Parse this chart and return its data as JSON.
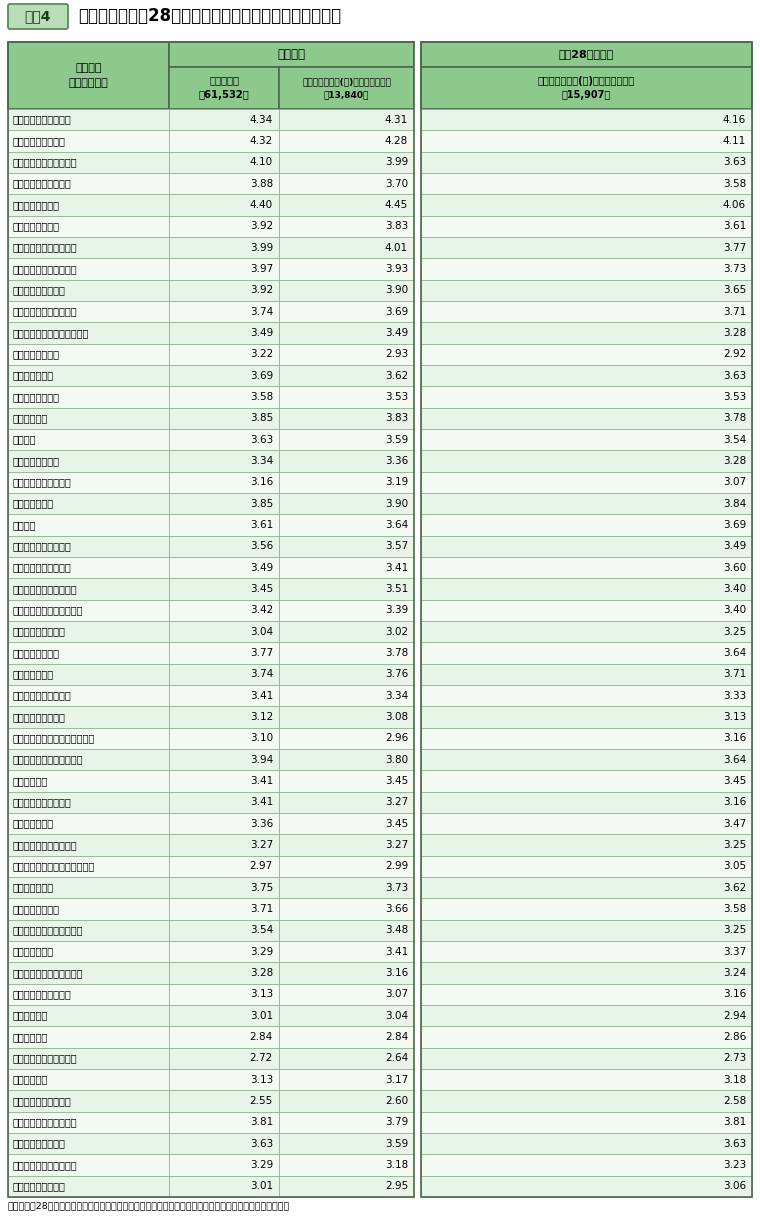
{
  "title": "今回調査と平成28年度調査との共通の質問項目の平均値",
  "tag": "資料4",
  "col1_header_line1": "質問項目",
  "col1_header_line2": "（回答者数）",
  "col2_header": "今回調査",
  "col3_header": "平成28年度調査",
  "col2a_line1": "【属性計】",
  "col2a_line2": "（61,532）",
  "col2b_line1": "【行政職俸給表(一)かつ本府省庁】",
  "col2b_line2": "（13,840）",
  "col3a_line1": "【行政職俸給表(一)かつ本府省庁】",
  "col3a_line2": "（15,907）",
  "footer": "（注）平成28年度調査の対象は、行政職俸給表（一）が適用される職員のうち、本府省庁に勤務する職員。",
  "header_bg": "#8dc88d",
  "tag_bg": "#b8ddb8",
  "tag_border": "#5a8a5a",
  "row_bg_even": "#e8f4e8",
  "row_bg_odd": "#f2faf2",
  "border_dark": "#4a6a4a",
  "border_light": "#8aaa8a",
  "rows": [
    [
      "法令やルールの理解度",
      4.34,
      4.31,
      4.16
    ],
    [
      "法令や倫理の遵守度",
      4.32,
      4.28,
      4.11
    ],
    [
      "不祥事の再発防止の取組",
      4.1,
      3.99,
      3.63
    ],
    [
      "苦情相談窓口の周知度",
      3.88,
      3.7,
      3.58
    ],
    [
      "セクハラの防止度",
      4.4,
      4.45,
      4.06
    ],
    [
      "パワハラの防止度",
      3.92,
      3.83,
      3.61
    ],
    [
      "所管行政の責任ある推進",
      3.99,
      4.01,
      3.77
    ],
    [
      "府省庁の国民への奉仕度",
      3.97,
      3.93,
      3.73
    ],
    [
      "府省庁の社会貢献度",
      3.92,
      3.9,
      3.65
    ],
    [
      "仕事を通じた貢献の実感",
      3.74,
      3.69,
      3.71
    ],
    [
      "国民のニーズの行政への反映",
      3.49,
      3.49,
      3.28
    ],
    [
      "奉仕の実感の機会",
      3.22,
      2.93,
      2.92
    ],
    [
      "業務量の許容度",
      3.69,
      3.62,
      3.63
    ],
    [
      "ストレスの許容度",
      3.58,
      3.53,
      3.53
    ],
    [
      "明るい雰囲気",
      3.85,
      3.83,
      3.78
    ],
    [
      "情報交換",
      3.63,
      3.59,
      3.54
    ],
    [
      "職場での相互啓発",
      3.34,
      3.36,
      3.28
    ],
    [
      "職場のチャレンジ志向",
      3.16,
      3.19,
      3.07
    ],
    [
      "仕事の改善姿勢",
      3.85,
      3.9,
      3.84
    ],
    [
      "権限委譲",
      3.61,
      3.64,
      3.69
    ],
    [
      "仕事のための自己研鑽",
      3.56,
      3.57,
      3.49
    ],
    [
      "仕事を通じた成長実感",
      3.49,
      3.41,
      3.6
    ],
    [
      "仕事におけるチャレンジ",
      3.45,
      3.51,
      3.4
    ],
    [
      "今の仕事のやりがいの実感",
      3.42,
      3.39,
      3.4
    ],
    [
      "自身の将来イメージ",
      3.04,
      3.02,
      3.25
    ],
    [
      "部下の意見の傾聴",
      3.77,
      3.78,
      3.64
    ],
    [
      "上司への信頼度",
      3.74,
      3.76,
      3.71
    ],
    [
      "状況に応じた業務配分",
      3.41,
      3.34,
      3.33
    ],
    [
      "ロールモデルの存在",
      3.12,
      3.08,
      3.13
    ],
    [
      "キャリアに関する部下への助言",
      3.1,
      2.96,
      3.16
    ],
    [
      "ワーク・ライフ・バランス",
      3.94,
      3.8,
      3.64
    ],
    [
      "女性活躍推進",
      3.41,
      3.45,
      3.45
    ],
    [
      "職員を大切にする風土",
      3.41,
      3.27,
      3.16
    ],
    [
      "能力本位の昇進",
      3.36,
      3.45,
      3.47
    ],
    [
      "転勤や人事異動の納得感",
      3.27,
      3.27,
      3.25
    ],
    [
      "異動における適性・育成の考慮",
      2.97,
      2.99,
      3.05
    ],
    [
      "組織方針の実践",
      3.75,
      3.73,
      3.62
    ],
    [
      "組織方針の浸透度",
      3.71,
      3.66,
      3.58
    ],
    [
      "適切なトップマネジメント",
      3.54,
      3.48,
      3.25
    ],
    [
      "現場重視の姿勢",
      3.29,
      3.41,
      3.37
    ],
    [
      "職場での技術・知識の共有",
      3.28,
      3.16,
      3.24
    ],
    [
      "オフィス環境の快適度",
      3.13,
      3.07,
      3.16
    ],
    [
      "業務の効率化",
      3.01,
      3.04,
      2.94
    ],
    [
      "公務の将来性",
      2.84,
      2.84,
      2.86
    ],
    [
      "業務量に応じた人員配置",
      2.72,
      2.64,
      2.73
    ],
    [
      "給与の満足度",
      3.13,
      3.17,
      3.18
    ],
    [
      "退職後の生活の安心感",
      2.55,
      2.6,
      2.58
    ],
    [
      "国家公務員としての誇り",
      3.81,
      3.79,
      3.81
    ],
    [
      "府省庁の職場満足度",
      3.63,
      3.59,
      3.63
    ],
    [
      "自分の仕事の社会的評価",
      3.29,
      3.18,
      3.23
    ],
    [
      "府省庁の職場推奨度",
      3.01,
      2.95,
      3.06
    ]
  ]
}
